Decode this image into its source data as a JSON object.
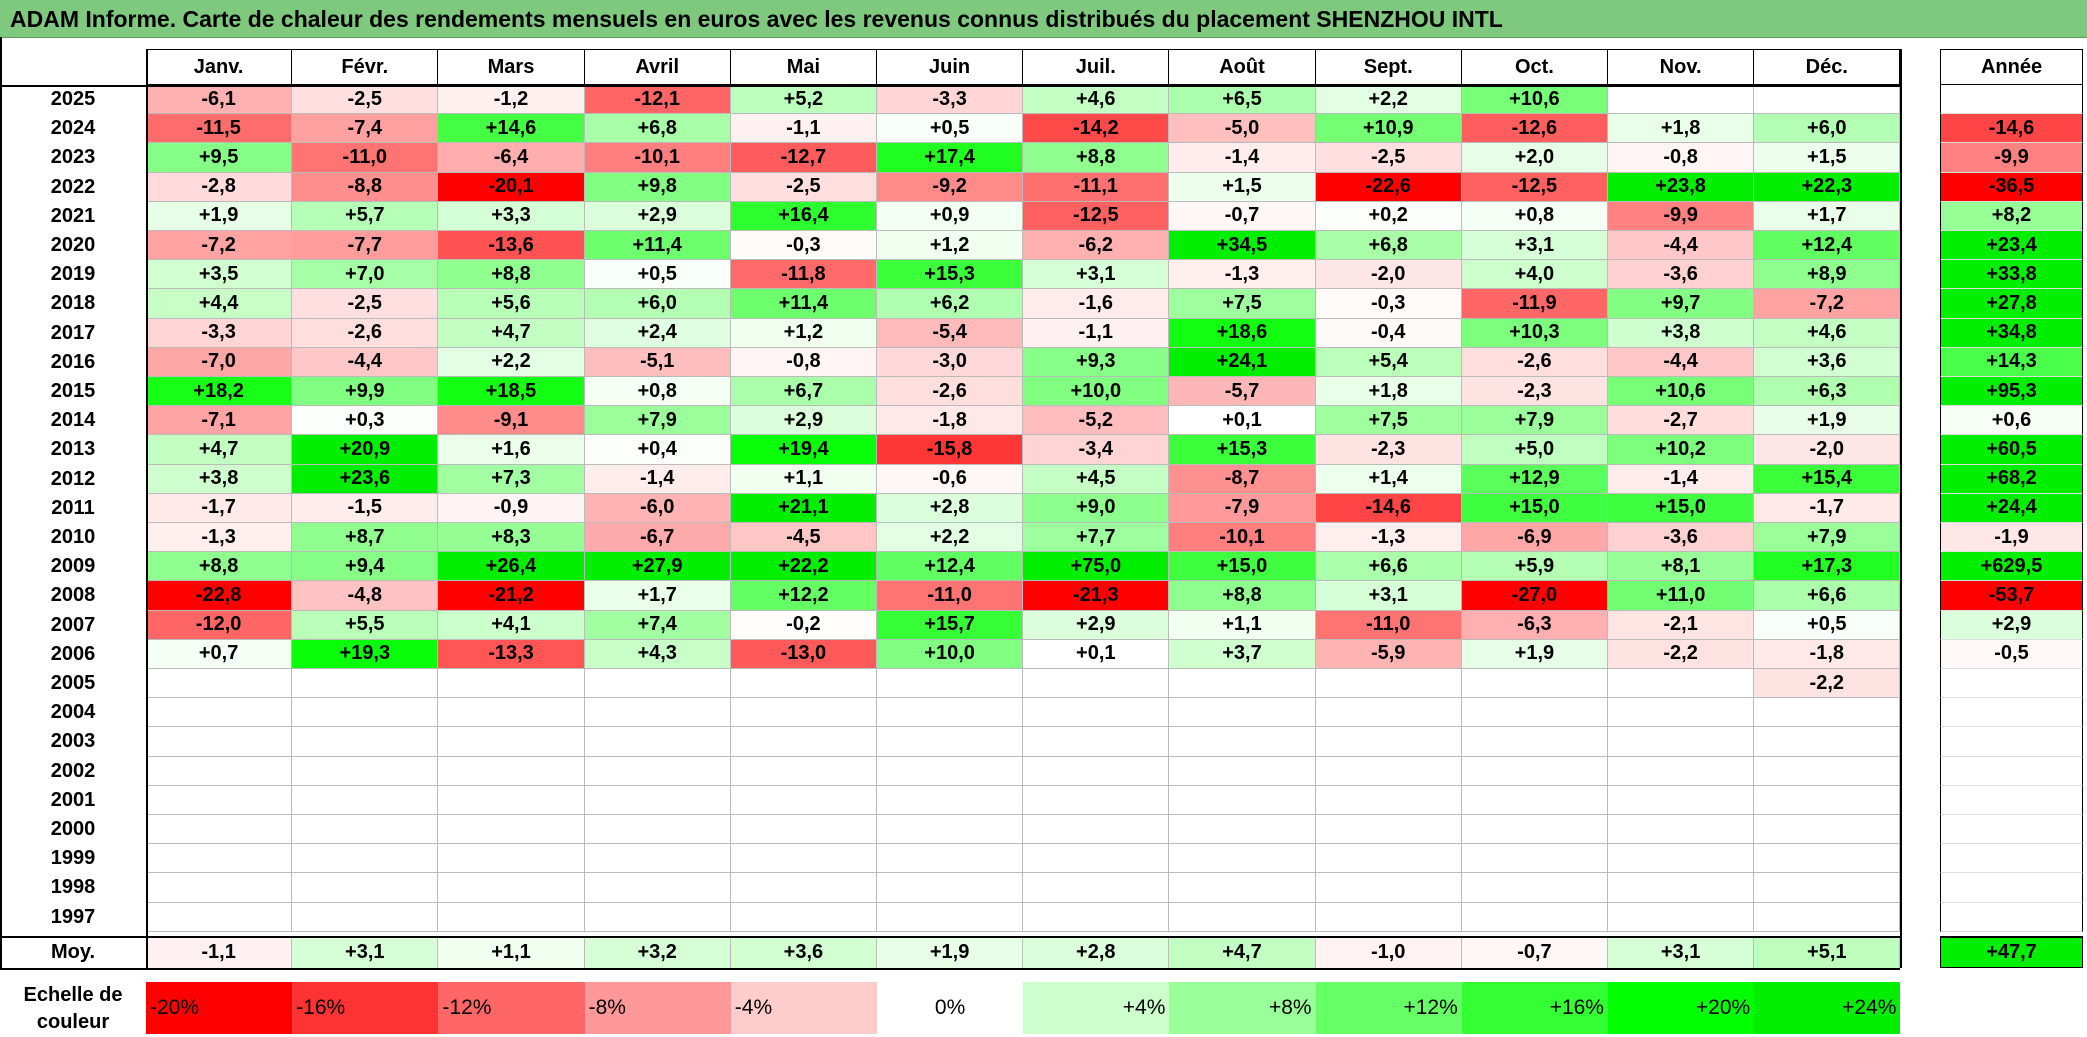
{
  "title": "ADAM Informe. Carte de chaleur des rendements mensuels en euros avec les revenus connus distribués du placement SHENZHOU INTL",
  "chart_data": {
    "type": "heatmap",
    "months": [
      "Janv.",
      "Févr.",
      "Mars",
      "Avril",
      "Mai",
      "Juin",
      "Juil.",
      "Août",
      "Sept.",
      "Oct.",
      "Nov.",
      "Déc."
    ],
    "year_header": "Année",
    "rows": [
      {
        "year": "2025",
        "values": [
          "-6,1",
          "-2,5",
          "-1,2",
          "-12,1",
          "+5,2",
          "-3,3",
          "+4,6",
          "+6,5",
          "+2,2",
          "+10,6",
          "",
          ""
        ],
        "annual": ""
      },
      {
        "year": "2024",
        "values": [
          "-11,5",
          "-7,4",
          "+14,6",
          "+6,8",
          "-1,1",
          "+0,5",
          "-14,2",
          "-5,0",
          "+10,9",
          "-12,6",
          "+1,8",
          "+6,0"
        ],
        "annual": "-14,6"
      },
      {
        "year": "2023",
        "values": [
          "+9,5",
          "-11,0",
          "-6,4",
          "-10,1",
          "-12,7",
          "+17,4",
          "+8,8",
          "-1,4",
          "-2,5",
          "+2,0",
          "-0,8",
          "+1,5"
        ],
        "annual": "-9,9"
      },
      {
        "year": "2022",
        "values": [
          "-2,8",
          "-8,8",
          "-20,1",
          "+9,8",
          "-2,5",
          "-9,2",
          "-11,1",
          "+1,5",
          "-22,6",
          "-12,5",
          "+23,8",
          "+22,3"
        ],
        "annual": "-36,5"
      },
      {
        "year": "2021",
        "values": [
          "+1,9",
          "+5,7",
          "+3,3",
          "+2,9",
          "+16,4",
          "+0,9",
          "-12,5",
          "-0,7",
          "+0,2",
          "+0,8",
          "-9,9",
          "+1,7"
        ],
        "annual": "+8,2"
      },
      {
        "year": "2020",
        "values": [
          "-7,2",
          "-7,7",
          "-13,6",
          "+11,4",
          "-0,3",
          "+1,2",
          "-6,2",
          "+34,5",
          "+6,8",
          "+3,1",
          "-4,4",
          "+12,4"
        ],
        "annual": "+23,4"
      },
      {
        "year": "2019",
        "values": [
          "+3,5",
          "+7,0",
          "+8,8",
          "+0,5",
          "-11,8",
          "+15,3",
          "+3,1",
          "-1,3",
          "-2,0",
          "+4,0",
          "-3,6",
          "+8,9"
        ],
        "annual": "+33,8"
      },
      {
        "year": "2018",
        "values": [
          "+4,4",
          "-2,5",
          "+5,6",
          "+6,0",
          "+11,4",
          "+6,2",
          "-1,6",
          "+7,5",
          "-0,3",
          "-11,9",
          "+9,7",
          "-7,2"
        ],
        "annual": "+27,8"
      },
      {
        "year": "2017",
        "values": [
          "-3,3",
          "-2,6",
          "+4,7",
          "+2,4",
          "+1,2",
          "-5,4",
          "-1,1",
          "+18,6",
          "-0,4",
          "+10,3",
          "+3,8",
          "+4,6"
        ],
        "annual": "+34,8"
      },
      {
        "year": "2016",
        "values": [
          "-7,0",
          "-4,4",
          "+2,2",
          "-5,1",
          "-0,8",
          "-3,0",
          "+9,3",
          "+24,1",
          "+5,4",
          "-2,6",
          "-4,4",
          "+3,6"
        ],
        "annual": "+14,3"
      },
      {
        "year": "2015",
        "values": [
          "+18,2",
          "+9,9",
          "+18,5",
          "+0,8",
          "+6,7",
          "-2,6",
          "+10,0",
          "-5,7",
          "+1,8",
          "-2,3",
          "+10,6",
          "+6,3"
        ],
        "annual": "+95,3"
      },
      {
        "year": "2014",
        "values": [
          "-7,1",
          "+0,3",
          "-9,1",
          "+7,9",
          "+2,9",
          "-1,8",
          "-5,2",
          "+0,1",
          "+7,5",
          "+7,9",
          "-2,7",
          "+1,9"
        ],
        "annual": "+0,6"
      },
      {
        "year": "2013",
        "values": [
          "+4,7",
          "+20,9",
          "+1,6",
          "+0,4",
          "+19,4",
          "-15,8",
          "-3,4",
          "+15,3",
          "-2,3",
          "+5,0",
          "+10,2",
          "-2,0"
        ],
        "annual": "+60,5"
      },
      {
        "year": "2012",
        "values": [
          "+3,8",
          "+23,6",
          "+7,3",
          "-1,4",
          "+1,1",
          "-0,6",
          "+4,5",
          "-8,7",
          "+1,4",
          "+12,9",
          "-1,4",
          "+15,4"
        ],
        "annual": "+68,2"
      },
      {
        "year": "2011",
        "values": [
          "-1,7",
          "-1,5",
          "-0,9",
          "-6,0",
          "+21,1",
          "+2,8",
          "+9,0",
          "-7,9",
          "-14,6",
          "+15,0",
          "+15,0",
          "-1,7"
        ],
        "annual": "+24,4"
      },
      {
        "year": "2010",
        "values": [
          "-1,3",
          "+8,7",
          "+8,3",
          "-6,7",
          "-4,5",
          "+2,2",
          "+7,7",
          "-10,1",
          "-1,3",
          "-6,9",
          "-3,6",
          "+7,9"
        ],
        "annual": "-1,9"
      },
      {
        "year": "2009",
        "values": [
          "+8,8",
          "+9,4",
          "+26,4",
          "+27,9",
          "+22,2",
          "+12,4",
          "+75,0",
          "+15,0",
          "+6,6",
          "+5,9",
          "+8,1",
          "+17,3"
        ],
        "annual": "+629,5"
      },
      {
        "year": "2008",
        "values": [
          "-22,8",
          "-4,8",
          "-21,2",
          "+1,7",
          "+12,2",
          "-11,0",
          "-21,3",
          "+8,8",
          "+3,1",
          "-27,0",
          "+11,0",
          "+6,6"
        ],
        "annual": "-53,7"
      },
      {
        "year": "2007",
        "values": [
          "-12,0",
          "+5,5",
          "+4,1",
          "+7,4",
          "-0,2",
          "+15,7",
          "+2,9",
          "+1,1",
          "-11,0",
          "-6,3",
          "-2,1",
          "+0,5"
        ],
        "annual": "+2,9"
      },
      {
        "year": "2006",
        "values": [
          "+0,7",
          "+19,3",
          "-13,3",
          "+4,3",
          "-13,0",
          "+10,0",
          "+0,1",
          "+3,7",
          "-5,9",
          "+1,9",
          "-2,2",
          "-1,8"
        ],
        "annual": "-0,5"
      },
      {
        "year": "2005",
        "values": [
          "",
          "",
          "",
          "",
          "",
          "",
          "",
          "",
          "",
          "",
          "",
          "-2,2"
        ],
        "annual": ""
      },
      {
        "year": "2004",
        "values": [
          "",
          "",
          "",
          "",
          "",
          "",
          "",
          "",
          "",
          "",
          "",
          ""
        ],
        "annual": ""
      },
      {
        "year": "2003",
        "values": [
          "",
          "",
          "",
          "",
          "",
          "",
          "",
          "",
          "",
          "",
          "",
          ""
        ],
        "annual": ""
      },
      {
        "year": "2002",
        "values": [
          "",
          "",
          "",
          "",
          "",
          "",
          "",
          "",
          "",
          "",
          "",
          ""
        ],
        "annual": ""
      },
      {
        "year": "2001",
        "values": [
          "",
          "",
          "",
          "",
          "",
          "",
          "",
          "",
          "",
          "",
          "",
          ""
        ],
        "annual": ""
      },
      {
        "year": "2000",
        "values": [
          "",
          "",
          "",
          "",
          "",
          "",
          "",
          "",
          "",
          "",
          "",
          ""
        ],
        "annual": ""
      },
      {
        "year": "1999",
        "values": [
          "",
          "",
          "",
          "",
          "",
          "",
          "",
          "",
          "",
          "",
          "",
          ""
        ],
        "annual": ""
      },
      {
        "year": "1998",
        "values": [
          "",
          "",
          "",
          "",
          "",
          "",
          "",
          "",
          "",
          "",
          "",
          ""
        ],
        "annual": ""
      },
      {
        "year": "1997",
        "values": [
          "",
          "",
          "",
          "",
          "",
          "",
          "",
          "",
          "",
          "",
          "",
          ""
        ],
        "annual": ""
      }
    ],
    "average": {
      "label": "Moy.",
      "values": [
        "-1,1",
        "+3,1",
        "+1,1",
        "+3,2",
        "+3,6",
        "+1,9",
        "+2,8",
        "+4,7",
        "-1,0",
        "-0,7",
        "+3,1",
        "+5,1"
      ],
      "annual": "+47,7"
    },
    "color_scale": {
      "label": "Echelle de couleur",
      "steps": [
        {
          "label": "-20%",
          "value": -20,
          "color": "#ff0000"
        },
        {
          "label": "-16%",
          "value": -16,
          "color": "#ff3333"
        },
        {
          "label": "-12%",
          "value": -12,
          "color": "#ff6666"
        },
        {
          "label": "-8%",
          "value": -8,
          "color": "#ff9999"
        },
        {
          "label": "-4%",
          "value": -4,
          "color": "#ffcccc"
        },
        {
          "label": "0%",
          "value": 0,
          "color": "#ffffff"
        },
        {
          "label": "+4%",
          "value": 4,
          "color": "#ccffcc"
        },
        {
          "label": "+8%",
          "value": 8,
          "color": "#99ff99"
        },
        {
          "label": "+12%",
          "value": 12,
          "color": "#66ff66"
        },
        {
          "label": "+16%",
          "value": 16,
          "color": "#33ff33"
        },
        {
          "label": "+20%",
          "value": 20,
          "color": "#00ff00"
        },
        {
          "label": "+24%",
          "value": 24,
          "color": "#00ee00"
        }
      ]
    }
  }
}
